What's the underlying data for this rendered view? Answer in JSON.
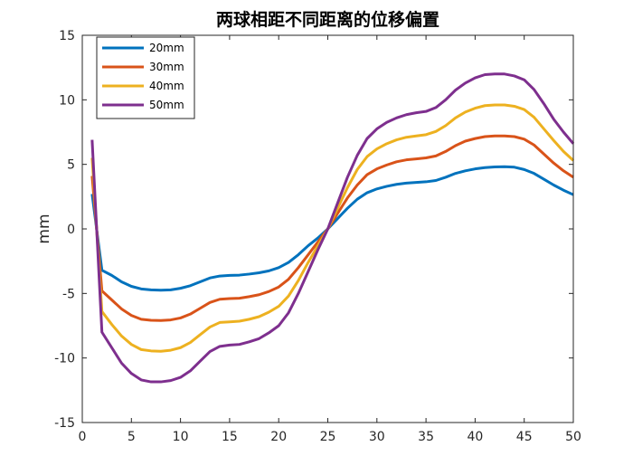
{
  "chart_data": {
    "type": "line",
    "title": "两球相距不同距离的位移偏置",
    "xlabel": "",
    "ylabel": "mm",
    "xlim": [
      0,
      50
    ],
    "ylim": [
      -15,
      15
    ],
    "xticks": [
      0,
      5,
      10,
      15,
      20,
      25,
      30,
      35,
      40,
      45,
      50
    ],
    "yticks": [
      -15,
      -10,
      -5,
      0,
      5,
      10,
      15
    ],
    "grid": false,
    "legend_position": "top-left",
    "x": [
      1,
      2,
      3,
      4,
      5,
      6,
      7,
      8,
      9,
      10,
      11,
      12,
      13,
      14,
      15,
      16,
      17,
      18,
      19,
      20,
      21,
      22,
      23,
      24,
      25,
      26,
      27,
      28,
      29,
      30,
      31,
      32,
      33,
      34,
      35,
      36,
      37,
      38,
      39,
      40,
      41,
      42,
      43,
      44,
      45,
      46,
      47,
      48,
      49,
      50
    ],
    "series": [
      {
        "name": "20mm",
        "color": "#0072BD",
        "values": [
          2.7,
          -3.2,
          -3.6,
          -4.1,
          -4.45,
          -4.65,
          -4.72,
          -4.75,
          -4.72,
          -4.6,
          -4.4,
          -4.1,
          -3.8,
          -3.65,
          -3.6,
          -3.58,
          -3.5,
          -3.4,
          -3.25,
          -3.0,
          -2.6,
          -2.0,
          -1.3,
          -0.7,
          0.0,
          0.8,
          1.6,
          2.3,
          2.8,
          3.1,
          3.3,
          3.45,
          3.55,
          3.6,
          3.65,
          3.75,
          4.0,
          4.3,
          4.5,
          4.65,
          4.75,
          4.8,
          4.82,
          4.78,
          4.6,
          4.3,
          3.85,
          3.4,
          3.0,
          2.65
        ]
      },
      {
        "name": "30mm",
        "color": "#D95319",
        "values": [
          4.1,
          -4.8,
          -5.5,
          -6.2,
          -6.7,
          -7.0,
          -7.08,
          -7.1,
          -7.05,
          -6.9,
          -6.6,
          -6.15,
          -5.7,
          -5.45,
          -5.4,
          -5.37,
          -5.25,
          -5.1,
          -4.85,
          -4.5,
          -3.9,
          -3.0,
          -2.0,
          -1.0,
          0.0,
          1.2,
          2.4,
          3.4,
          4.2,
          4.65,
          4.95,
          5.2,
          5.35,
          5.42,
          5.5,
          5.65,
          6.0,
          6.45,
          6.8,
          7.0,
          7.15,
          7.2,
          7.2,
          7.15,
          6.95,
          6.5,
          5.8,
          5.1,
          4.5,
          4.0
        ]
      },
      {
        "name": "40mm",
        "color": "#EDB120",
        "values": [
          5.5,
          -6.4,
          -7.4,
          -8.3,
          -8.95,
          -9.35,
          -9.45,
          -9.48,
          -9.4,
          -9.2,
          -8.8,
          -8.2,
          -7.6,
          -7.25,
          -7.2,
          -7.15,
          -7.0,
          -6.8,
          -6.45,
          -6.0,
          -5.2,
          -4.0,
          -2.6,
          -1.3,
          0.0,
          1.6,
          3.2,
          4.6,
          5.6,
          6.2,
          6.6,
          6.9,
          7.1,
          7.2,
          7.3,
          7.55,
          8.0,
          8.6,
          9.05,
          9.35,
          9.55,
          9.6,
          9.6,
          9.5,
          9.25,
          8.65,
          7.75,
          6.85,
          6.0,
          5.3
        ]
      },
      {
        "name": "50mm",
        "color": "#7E2F8E",
        "values": [
          6.9,
          -8.0,
          -9.2,
          -10.4,
          -11.2,
          -11.7,
          -11.85,
          -11.85,
          -11.75,
          -11.5,
          -11.0,
          -10.25,
          -9.5,
          -9.1,
          -9.0,
          -8.95,
          -8.75,
          -8.5,
          -8.05,
          -7.5,
          -6.5,
          -5.0,
          -3.3,
          -1.6,
          0.0,
          2.0,
          4.0,
          5.7,
          7.0,
          7.75,
          8.25,
          8.6,
          8.85,
          9.0,
          9.1,
          9.4,
          10.0,
          10.75,
          11.3,
          11.7,
          11.95,
          12.0,
          12.0,
          11.85,
          11.55,
          10.8,
          9.7,
          8.5,
          7.5,
          6.6
        ]
      }
    ]
  }
}
